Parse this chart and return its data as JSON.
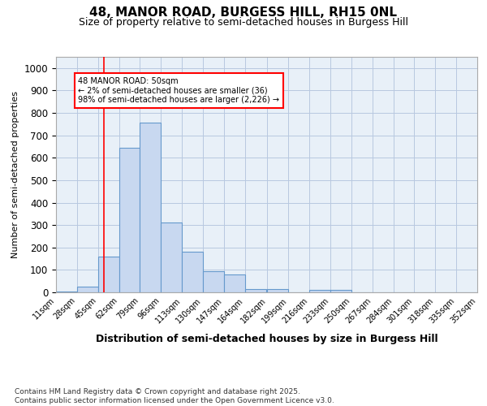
{
  "title1": "48, MANOR ROAD, BURGESS HILL, RH15 0NL",
  "title2": "Size of property relative to semi-detached houses in Burgess Hill",
  "xlabel": "Distribution of semi-detached houses by size in Burgess Hill",
  "ylabel": "Number of semi-detached properties",
  "footnote": "Contains HM Land Registry data © Crown copyright and database right 2025.\nContains public sector information licensed under the Open Government Licence v3.0.",
  "bar_color": "#c8d8f0",
  "bar_edge_color": "#6699cc",
  "grid_color": "#b8c8e0",
  "background_color": "#e8f0f8",
  "fig_background": "#ffffff",
  "red_line_x": 50,
  "annotation_text": "48 MANOR ROAD: 50sqm\n← 2% of semi-detached houses are smaller (36)\n98% of semi-detached houses are larger (2,226) →",
  "bins": [
    11,
    28,
    45,
    62,
    79,
    96,
    113,
    130,
    147,
    164,
    182,
    199,
    216,
    233,
    250,
    267,
    284,
    301,
    318,
    335,
    352
  ],
  "bin_labels": [
    "11sqm",
    "28sqm",
    "45sqm",
    "62sqm",
    "79sqm",
    "96sqm",
    "113sqm",
    "130sqm",
    "147sqm",
    "164sqm",
    "182sqm",
    "199sqm",
    "216sqm",
    "233sqm",
    "250sqm",
    "267sqm",
    "284sqm",
    "301sqm",
    "318sqm",
    "335sqm",
    "352sqm"
  ],
  "bar_heights": [
    5,
    25,
    160,
    645,
    755,
    310,
    180,
    95,
    80,
    15,
    15,
    0,
    10,
    10,
    0,
    0,
    0,
    0,
    0,
    0
  ],
  "ylim": [
    0,
    1050
  ],
  "yticks": [
    0,
    100,
    200,
    300,
    400,
    500,
    600,
    700,
    800,
    900,
    1000
  ]
}
